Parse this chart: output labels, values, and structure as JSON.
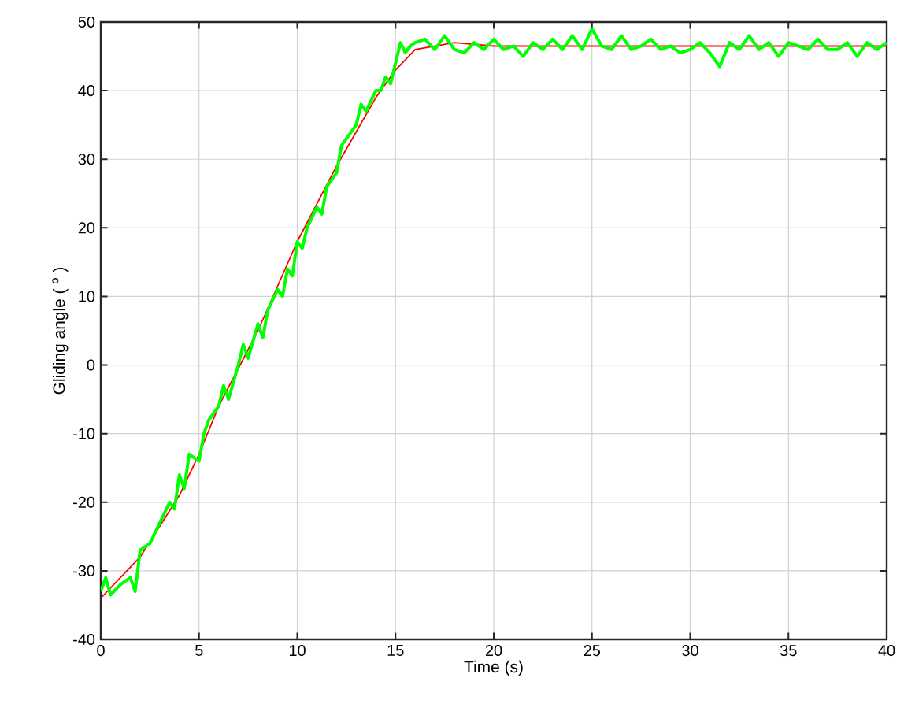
{
  "chart_data": {
    "type": "line",
    "xlabel": "Time (s)",
    "ylabel": "Gliding angle ( $^{o}$ )",
    "xlim": [
      0,
      40
    ],
    "ylim": [
      -40,
      50
    ],
    "xticks": [
      0,
      5,
      10,
      15,
      20,
      25,
      30,
      35,
      40
    ],
    "yticks": [
      -40,
      -30,
      -20,
      -10,
      0,
      10,
      20,
      30,
      40,
      50
    ],
    "grid": true,
    "line_style": "solid",
    "marker": "none",
    "series": [
      {
        "color": "#ff0000",
        "x": [
          0,
          2,
          4,
          5,
          6,
          8,
          10,
          12,
          14,
          15,
          16,
          18,
          20,
          25,
          30,
          35,
          40
        ],
        "values": [
          -34,
          -28,
          -19,
          -13,
          -6,
          5,
          18,
          29,
          39,
          43,
          46,
          47,
          46.5,
          46.5,
          46.5,
          46.5,
          46.5
        ]
      },
      {
        "color": "#00ff00",
        "x": [
          0,
          0.25,
          0.5,
          1,
          1.5,
          1.75,
          2,
          2.5,
          3,
          3.5,
          3.75,
          4,
          4.25,
          4.5,
          5,
          5.25,
          5.5,
          6,
          6.25,
          6.5,
          7,
          7.25,
          7.5,
          8,
          8.25,
          8.5,
          9,
          9.25,
          9.5,
          9.75,
          10,
          10.25,
          10.5,
          11,
          11.25,
          11.5,
          12,
          12.25,
          12.5,
          13,
          13.25,
          13.5,
          14,
          14.25,
          14.5,
          14.75,
          15,
          15.25,
          15.5,
          15.75,
          16,
          16.5,
          17,
          17.5,
          18,
          18.5,
          19,
          19.5,
          20,
          20.5,
          21,
          21.5,
          22,
          22.5,
          23,
          23.5,
          24,
          24.5,
          25,
          25.5,
          26,
          26.5,
          27,
          27.5,
          28,
          28.5,
          29,
          29.5,
          30,
          30.5,
          31,
          31.5,
          32,
          32.5,
          33,
          33.5,
          34,
          34.5,
          35,
          35.5,
          36,
          36.5,
          37,
          37.5,
          38,
          38.5,
          39,
          39.5,
          40
        ],
        "values": [
          -33,
          -31,
          -33.5,
          -32,
          -31,
          -33,
          -27,
          -26,
          -23,
          -20,
          -21,
          -16,
          -18,
          -13,
          -14,
          -10,
          -8,
          -6,
          -3,
          -5,
          0,
          3,
          1,
          6,
          4,
          8,
          11,
          10,
          14,
          13,
          18,
          17,
          20,
          23,
          22,
          26,
          28,
          32,
          33,
          35,
          38,
          37,
          40,
          40,
          42,
          41,
          44,
          47,
          45.5,
          46.5,
          47,
          47.5,
          46,
          48,
          46,
          45.5,
          47,
          46,
          47.5,
          46,
          46.5,
          45,
          47,
          46,
          47.5,
          46,
          48,
          46,
          49,
          46.5,
          46,
          48,
          46,
          46.5,
          47.5,
          46,
          46.5,
          45.5,
          46,
          47,
          45.5,
          43.5,
          47,
          46,
          48,
          46,
          47,
          45,
          47,
          46.5,
          46,
          47.5,
          46,
          46,
          47,
          45,
          47,
          46,
          47
        ]
      }
    ]
  }
}
